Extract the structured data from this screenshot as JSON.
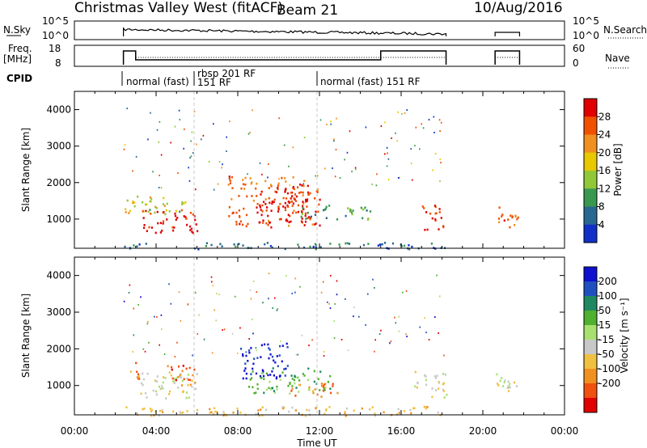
{
  "header": {
    "title": "Christmas Valley West (fitACF)",
    "beam": "Beam 21",
    "date": "10/Aug/2016"
  },
  "panels": {
    "nsky": {
      "label": "N.Sky",
      "ticks_left": [
        "10^5",
        "10^0"
      ],
      "ticks_right": [
        "10^5",
        "10^0"
      ],
      "right_label": "N.Search"
    },
    "freq": {
      "label_line1": "Freq.",
      "label_line2": "[MHz]",
      "ticks_left": [
        "18",
        "8"
      ],
      "ticks_right": [
        "60",
        "0"
      ],
      "right_label": "Nave"
    },
    "cpid": {
      "label": "CPID",
      "segments": [
        "normal (fast)",
        "rbsp 201 RF",
        "151 RF",
        "normal (fast) 151 RF"
      ]
    }
  },
  "axes": {
    "x_label": "Time UT",
    "x_ticks": [
      "00:00",
      "04:00",
      "08:00",
      "12:00",
      "16:00",
      "20:00",
      "00:00"
    ],
    "y_label": "Slant Range [km]",
    "y_ticks": [
      "1000",
      "2000",
      "3000",
      "4000"
    ]
  },
  "colorbars": {
    "power": {
      "label": "Power [dB]",
      "ticks": [
        "28",
        "24",
        "20",
        "16",
        "12",
        "8",
        "4"
      ],
      "colors": [
        "#e00000",
        "#f05000",
        "#f09020",
        "#e8c800",
        "#90c838",
        "#389850",
        "#286890",
        "#1030c8"
      ]
    },
    "velocity": {
      "label": "Velocity [m s⁻¹]",
      "ticks": [
        "200",
        "100",
        "50",
        "15",
        "-15",
        "-50",
        "-100",
        "-200"
      ],
      "colors": [
        "#1010d0",
        "#2050c0",
        "#208860",
        "#50b030",
        "#a8e070",
        "#c8c8c8",
        "#f0c040",
        "#f09020",
        "#f05010",
        "#e00000"
      ]
    }
  },
  "chart_data": {
    "type": "heatmap",
    "x_unit": "hours UT",
    "x_range": [
      0,
      24
    ],
    "y_unit": "km",
    "y_range": [
      200,
      4500
    ],
    "time_gap_hours": [
      18.2,
      20.6
    ],
    "power_blobs": [
      {
        "t0": 2.4,
        "t1": 4.5,
        "r0": 1150,
        "r1": 1650,
        "level": 3
      },
      {
        "t0": 3.0,
        "t1": 6.0,
        "r0": 650,
        "r1": 1300,
        "level": 0
      },
      {
        "t0": 3.5,
        "t1": 5.5,
        "r0": 1200,
        "r1": 1500,
        "level": 4
      },
      {
        "t0": 7.5,
        "t1": 12.0,
        "r0": 800,
        "r1": 2200,
        "level": 1
      },
      {
        "t0": 9.0,
        "t1": 11.5,
        "r0": 900,
        "r1": 1800,
        "level": 0
      },
      {
        "t0": 11.0,
        "t1": 14.5,
        "r0": 1000,
        "r1": 1400,
        "level": 5
      },
      {
        "t0": 17.0,
        "t1": 18.2,
        "r0": 700,
        "r1": 1400,
        "level": 0
      },
      {
        "t0": 20.6,
        "t1": 21.8,
        "r0": 800,
        "r1": 1400,
        "level": 1
      },
      {
        "t0": 2.4,
        "t1": 18.2,
        "r0": 200,
        "r1": 380,
        "level": 6
      }
    ],
    "velocity_blobs": [
      {
        "t0": 2.4,
        "t1": 3.2,
        "r0": 1200,
        "r1": 1650,
        "level": 7
      },
      {
        "t0": 3.0,
        "t1": 6.0,
        "r0": 650,
        "r1": 1400,
        "level": 5
      },
      {
        "t0": 4.5,
        "t1": 6.0,
        "r0": 1000,
        "r1": 1600,
        "level": 8
      },
      {
        "t0": 8.0,
        "t1": 10.5,
        "r0": 1200,
        "r1": 2200,
        "level": 0
      },
      {
        "t0": 8.5,
        "t1": 12.5,
        "r0": 800,
        "r1": 1500,
        "level": 3
      },
      {
        "t0": 10.5,
        "t1": 13.0,
        "r0": 700,
        "r1": 1100,
        "level": 7
      },
      {
        "t0": 16.5,
        "t1": 18.2,
        "r0": 700,
        "r1": 1400,
        "level": 5
      },
      {
        "t0": 20.6,
        "t1": 21.8,
        "r0": 700,
        "r1": 1400,
        "level": 5
      },
      {
        "t0": 2.4,
        "t1": 18.2,
        "r0": 200,
        "r1": 450,
        "level": 6
      }
    ]
  }
}
